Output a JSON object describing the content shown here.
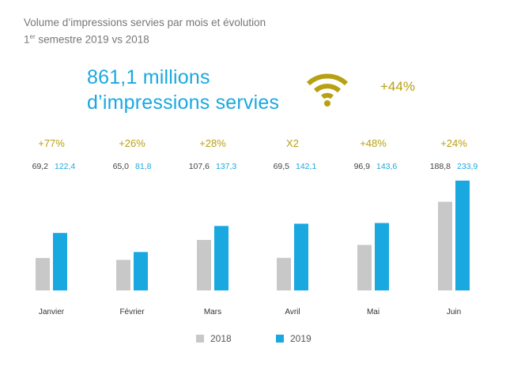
{
  "title_line1": "Volume d’impressions servies par mois et évolution",
  "title_line2_num": "1",
  "title_line2_sup": "er",
  "title_line2_rest": " semestre 2019 vs 2018",
  "headline_line1": "861,1 millions",
  "headline_line2": "d’impressions servies",
  "total_change": "+44%",
  "icon": "wifi-icon",
  "colors": {
    "s2018": "#c8c8c8",
    "s2019": "#1aa8e0",
    "accent": "#b8a011",
    "headline": "#1aa8e0"
  },
  "legend": {
    "s2018": "2018",
    "s2019": "2019"
  },
  "chart_data": {
    "type": "bar",
    "categories": [
      "Janvier",
      "Février",
      "Mars",
      "Avril",
      "Mai",
      "Juin"
    ],
    "series": [
      {
        "name": "2018",
        "values": [
          69.2,
          65.0,
          107.6,
          69.5,
          96.9,
          188.8
        ],
        "labels": [
          "69,2",
          "65,0",
          "107,6",
          "69,5",
          "96,9",
          "188,8"
        ]
      },
      {
        "name": "2019",
        "values": [
          122.4,
          81.8,
          137.3,
          142.1,
          143.6,
          233.9
        ],
        "labels": [
          "122,4",
          "81,8",
          "137,3",
          "142,1",
          "143,6",
          "233,9"
        ]
      }
    ],
    "changes": [
      "+77%",
      "+26%",
      "+28%",
      "X2",
      "+48%",
      "+24%"
    ],
    "title": "Volume d’impressions servies par mois et évolution",
    "legend_position": "bottom",
    "grid": false
  }
}
